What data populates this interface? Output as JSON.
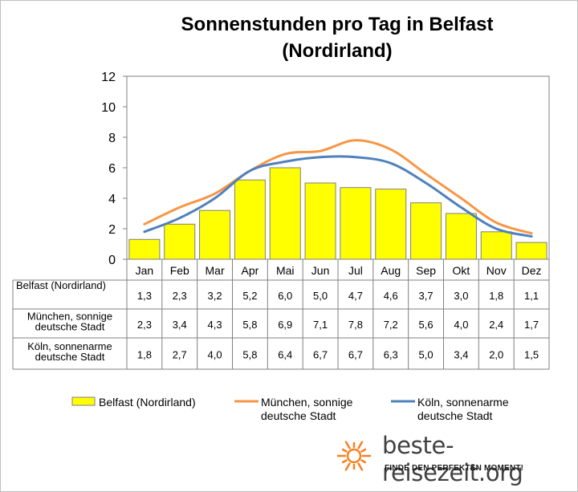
{
  "chart_data": {
    "type": "bar",
    "title_line1": "Sonnenstunden pro Tag in Belfast",
    "title_line2": "(Nordirland)",
    "categories": [
      "Jan",
      "Feb",
      "Mar",
      "Apr",
      "Mai",
      "Jun",
      "Jul",
      "Aug",
      "Sep",
      "Okt",
      "Nov",
      "Dez"
    ],
    "ylim": [
      0,
      12
    ],
    "yticks": [
      "0",
      "2",
      "4",
      "6",
      "8",
      "10",
      "12"
    ],
    "grid": false,
    "legend_position": "bottom",
    "series": [
      {
        "name": "Belfast (Nordirland)",
        "type": "bar",
        "color": "#ffff00",
        "values": [
          1.3,
          2.3,
          3.2,
          5.2,
          6.0,
          5.0,
          4.7,
          4.6,
          3.7,
          3.0,
          1.8,
          1.1
        ],
        "labels": [
          "1,3",
          "2,3",
          "3,2",
          "5,2",
          "6,0",
          "5,0",
          "4,7",
          "4,6",
          "3,7",
          "3,0",
          "1,8",
          "1,1"
        ]
      },
      {
        "name": "München, sonnige deutsche Stadt",
        "name_lines": [
          "München, sonnige",
          "deutsche Stadt"
        ],
        "type": "line",
        "color": "#f79646",
        "values": [
          2.3,
          3.4,
          4.3,
          5.8,
          6.9,
          7.1,
          7.8,
          7.2,
          5.6,
          4.0,
          2.4,
          1.7
        ],
        "labels": [
          "2,3",
          "3,4",
          "4,3",
          "5,8",
          "6,9",
          "7,1",
          "7,8",
          "7,2",
          "5,6",
          "4,0",
          "2,4",
          "1,7"
        ]
      },
      {
        "name": "Köln, sonnenarme deutsche Stadt",
        "name_lines": [
          "Köln, sonnenarme",
          "deutsche Stadt"
        ],
        "type": "line",
        "color": "#4f81bd",
        "values": [
          1.8,
          2.7,
          4.0,
          5.8,
          6.4,
          6.7,
          6.7,
          6.3,
          5.0,
          3.4,
          2.0,
          1.5
        ],
        "labels": [
          "1,8",
          "2,7",
          "4,0",
          "5,8",
          "6,4",
          "6,7",
          "6,7",
          "6,3",
          "5,0",
          "3,4",
          "2,0",
          "1,5"
        ]
      }
    ]
  },
  "branding": {
    "site": "beste-reisezeit.org",
    "tagline": "FINDE DEN PERFEKTEN MOMENT!",
    "sun_color": "#f58220"
  }
}
